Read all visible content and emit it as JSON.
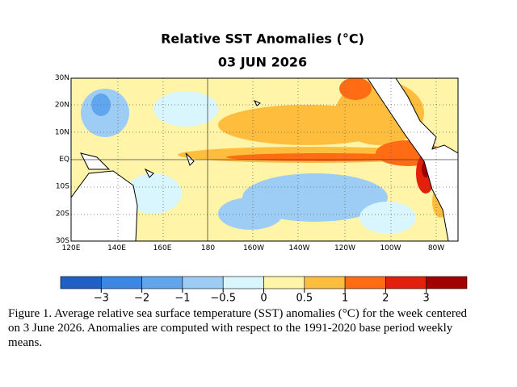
{
  "title": "Relative SST Anomalies (°C)",
  "date": "03 JUN 2026",
  "map": {
    "lat_labels": [
      "30N",
      "20N",
      "10N",
      "EQ",
      "10S",
      "20S",
      "30S"
    ],
    "lon_labels": [
      "120E",
      "140E",
      "160E",
      "180",
      "160W",
      "140W",
      "120W",
      "100W",
      "80W"
    ]
  },
  "colorbar": {
    "colors": [
      "#1f5fc8",
      "#3a87e6",
      "#5fa6ef",
      "#9dcdf5",
      "#d9f6ff",
      "#fff4a8",
      "#ffbd3d",
      "#ff6c14",
      "#e3200b",
      "#a30000"
    ],
    "tick_labels": [
      "−3",
      "−2",
      "−1",
      "−0.5",
      "0",
      "0.5",
      "1",
      "2",
      "3"
    ]
  },
  "caption": [
    "Figure 1. Average relative sea surface temperature (SST) anomalies (°C) for the week centered",
    "on 3 June 2026.  Anomalies are computed with respect to the 1991-2020 base period weekly",
    "means."
  ]
}
